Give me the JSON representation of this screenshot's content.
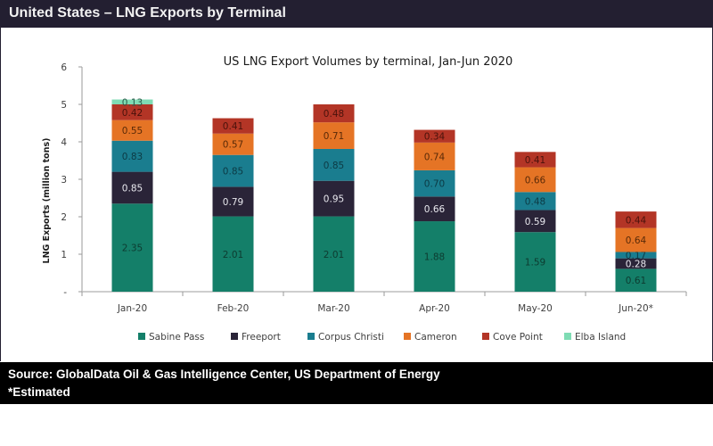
{
  "header": {
    "title": "United States – LNG Exports by Terminal"
  },
  "footer": {
    "source": "Source: GlobalData Oil & Gas Intelligence Center, US Department of Energy",
    "note": "*Estimated"
  },
  "chart_data": {
    "type": "bar",
    "stacked": true,
    "title": "US LNG Export Volumes by terminal, Jan-Jun 2020",
    "xlabel": "",
    "ylabel": "LNG Exports (million tons)",
    "ylim": [
      0,
      6
    ],
    "yticks": [
      "-",
      "1",
      "2",
      "3",
      "4",
      "5",
      "6"
    ],
    "grid": false,
    "legend_position": "bottom",
    "categories": [
      "Jan-20",
      "Feb-20",
      "Mar-20",
      "Apr-20",
      "May-20",
      "Jun-20*"
    ],
    "series": [
      {
        "name": "Sabine Pass",
        "color": "#147f69",
        "label_color": "#0d3b30",
        "values": [
          2.35,
          2.01,
          2.01,
          1.88,
          1.59,
          0.61
        ]
      },
      {
        "name": "Freeport",
        "color": "#2a2438",
        "label_color": "#e8e8ee",
        "values": [
          0.85,
          0.79,
          0.95,
          0.66,
          0.59,
          0.28
        ]
      },
      {
        "name": "Corpus Christi",
        "color": "#1a7d8f",
        "label_color": "#0c3a44",
        "values": [
          0.83,
          0.85,
          0.85,
          0.7,
          0.48,
          0.17
        ]
      },
      {
        "name": "Cameron",
        "color": "#e57425",
        "label_color": "#5a2a08",
        "values": [
          0.55,
          0.57,
          0.71,
          0.74,
          0.66,
          0.64
        ]
      },
      {
        "name": "Cove Point",
        "color": "#b33526",
        "label_color": "#4a120b",
        "values": [
          0.42,
          0.41,
          0.48,
          0.34,
          0.41,
          0.44
        ]
      },
      {
        "name": "Elba Island",
        "color": "#7fdcb4",
        "label_color": "#2a5a48",
        "values": [
          0.13,
          null,
          null,
          null,
          null,
          null
        ]
      }
    ]
  }
}
